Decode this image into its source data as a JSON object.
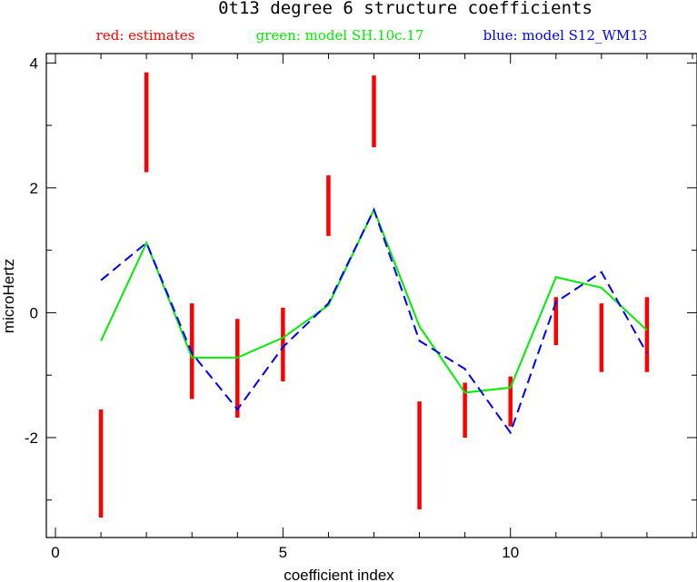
{
  "chart_data": {
    "type": "line",
    "title": "0t13 degree 6 structure coefficients",
    "xlabel": "coefficient index",
    "ylabel": "microHertz",
    "xlim": [
      -0.2,
      14.1
    ],
    "ylim": [
      -3.6,
      4.15
    ],
    "x_ticks": [
      0,
      5,
      10
    ],
    "y_ticks": [
      -2,
      0,
      2,
      4
    ],
    "legend": [
      {
        "label": "red: estimates",
        "color": "#ff0000"
      },
      {
        "label": "green: model SH.10c.17",
        "color": "#00ee00"
      },
      {
        "label": "blue: model S12_WM13",
        "color": "#0000ff"
      }
    ],
    "estimates": {
      "name": "estimates",
      "color": "#ff0000",
      "x": [
        1,
        2,
        3,
        4,
        5,
        6,
        7,
        8,
        9,
        10,
        11,
        12,
        13
      ],
      "low": [
        -3.28,
        2.25,
        -1.38,
        -1.68,
        -1.1,
        1.23,
        2.65,
        -3.15,
        -2.0,
        -1.82,
        -0.52,
        -0.95,
        -0.95
      ],
      "high": [
        -1.55,
        3.85,
        0.15,
        -0.1,
        0.08,
        2.2,
        3.8,
        -1.42,
        -1.12,
        -1.02,
        0.25,
        0.15,
        0.25
      ]
    },
    "series": [
      {
        "name": "model SH.10c.17",
        "color": "#00ee00",
        "style": "solid",
        "x": [
          1,
          2,
          3,
          4,
          5,
          6,
          7,
          8,
          9,
          10,
          11,
          12,
          13
        ],
        "y": [
          -0.45,
          1.12,
          -0.72,
          -0.72,
          -0.4,
          0.12,
          1.65,
          -0.22,
          -1.28,
          -1.2,
          0.57,
          0.4,
          -0.28
        ]
      },
      {
        "name": "model S12_WM13",
        "color": "#0000ff",
        "style": "dashed",
        "x": [
          1,
          2,
          3,
          4,
          5,
          6,
          7,
          8,
          9,
          10,
          11,
          12,
          13
        ],
        "y": [
          0.52,
          1.12,
          -0.65,
          -1.55,
          -0.55,
          0.15,
          1.65,
          -0.45,
          -0.9,
          -1.92,
          0.17,
          0.65,
          -0.65
        ]
      }
    ],
    "grid": false
  }
}
